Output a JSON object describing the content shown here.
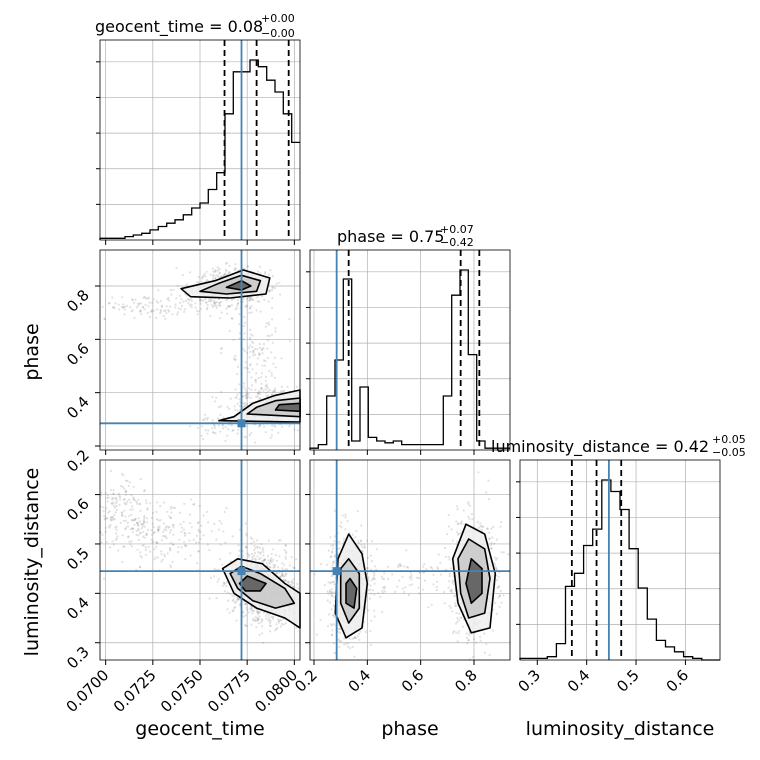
{
  "colors": {
    "truth": "#4682b4",
    "hist": "#000000",
    "grid": "#b0b0b0",
    "scatter": "#888888"
  },
  "titles": {
    "geocent_time": {
      "main": "geocent_time = 0.08",
      "sup": "+0.00",
      "sub": "−0.00"
    },
    "phase": {
      "main": "phase = 0.75",
      "sup": "+0.07",
      "sub": "−0.42"
    },
    "luminosity_distance": {
      "main": "luminosity_distance = 0.42",
      "sup": "+0.05",
      "sub": "−0.05"
    }
  },
  "axis_labels": {
    "x0": "geocent_time",
    "x1": "phase",
    "x2": "luminosity_distance",
    "y1": "phase",
    "y2": "luminosity_distance"
  },
  "chart_data": {
    "type": "corner",
    "parameters": [
      "geocent_time",
      "phase",
      "luminosity_distance"
    ],
    "ranges": {
      "geocent_time": [
        0.0697,
        0.0803
      ],
      "phase": [
        0.185,
        0.935
      ],
      "luminosity_distance": [
        0.265,
        0.67
      ]
    },
    "ticks": {
      "geocent_time": [
        "0.0700",
        "0.0725",
        "0.0750",
        "0.0775",
        "0.0800"
      ],
      "phase": [
        "0.2",
        "0.4",
        "0.6",
        "0.8"
      ],
      "luminosity_distance": [
        "0.3",
        "0.4",
        "0.5",
        "0.6"
      ]
    },
    "truths": {
      "geocent_time": 0.0772,
      "phase": 0.285,
      "luminosity_distance": 0.445
    },
    "quantiles": {
      "geocent_time": [
        0.0763,
        0.078,
        0.0797
      ],
      "phase": [
        0.33,
        0.75,
        0.82
      ],
      "luminosity_distance": [
        0.37,
        0.42,
        0.47
      ]
    },
    "histograms": {
      "geocent_time": [
        1,
        1,
        1,
        2,
        3,
        4,
        6,
        8,
        10,
        12,
        15,
        19,
        22,
        30,
        40,
        75,
        100,
        100,
        107,
        103,
        95,
        88,
        75,
        58
      ],
      "phase": [
        1,
        3,
        30,
        50,
        95,
        5,
        35,
        7,
        5,
        4,
        5,
        3,
        3,
        3,
        3,
        3,
        30,
        86,
        100,
        53,
        5,
        1,
        1,
        1
      ],
      "luminosity_distance": [
        1,
        1,
        1,
        2,
        10,
        45,
        53,
        70,
        80,
        110,
        103,
        92,
        68,
        44,
        25,
        12,
        8,
        5,
        2,
        1,
        0,
        0
      ]
    },
    "axes": [
      {
        "x": "geocent_time",
        "y": "phase"
      },
      {
        "x": "geocent_time",
        "y": "luminosity_distance"
      },
      {
        "x": "phase",
        "y": "luminosity_distance"
      }
    ]
  }
}
